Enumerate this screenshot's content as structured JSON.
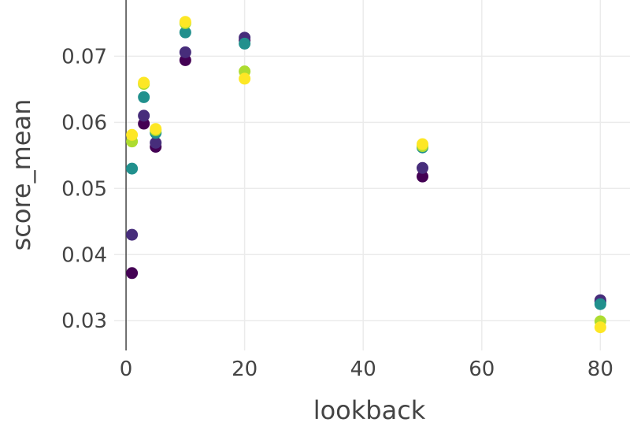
{
  "chart_data": {
    "type": "scatter",
    "title": "",
    "xlabel": "lookback",
    "ylabel": "score_mean",
    "xlim": [
      -2,
      85
    ],
    "ylim": [
      0.0255,
      0.0785
    ],
    "xticks": [
      0,
      20,
      40,
      60,
      80
    ],
    "xtick_labels": [
      "0",
      "20",
      "40",
      "60",
      "80"
    ],
    "yticks": [
      0.03,
      0.04,
      0.05,
      0.06,
      0.07
    ],
    "ytick_labels": [
      "0.03",
      "0.04",
      "0.05",
      "0.06",
      "0.07"
    ],
    "grid": true,
    "series": [
      {
        "color": "#440154",
        "points": [
          [
            1,
            0.0372
          ],
          [
            3,
            0.0598
          ],
          [
            5,
            0.0563
          ],
          [
            10,
            0.0694
          ],
          [
            20,
            0.0724
          ],
          [
            50,
            0.0518
          ],
          [
            80,
            0.0329
          ]
        ]
      },
      {
        "color": "#472d7b",
        "points": [
          [
            1,
            0.043
          ],
          [
            3,
            0.061
          ],
          [
            5,
            0.0569
          ],
          [
            10,
            0.0706
          ],
          [
            20,
            0.0728
          ],
          [
            50,
            0.0531
          ],
          [
            80,
            0.0331
          ]
        ]
      },
      {
        "color": "#21908d",
        "points": [
          [
            1,
            0.053
          ],
          [
            3,
            0.0638
          ],
          [
            5,
            0.0584
          ],
          [
            10,
            0.0736
          ],
          [
            20,
            0.0719
          ],
          [
            50,
            0.0562
          ],
          [
            80,
            0.0325
          ]
        ]
      },
      {
        "color": "#addc30",
        "points": [
          [
            1,
            0.0571
          ],
          [
            3,
            0.0658
          ],
          [
            5,
            0.0588
          ],
          [
            10,
            0.075
          ],
          [
            20,
            0.0677
          ],
          [
            50,
            0.0564
          ],
          [
            80,
            0.0299
          ]
        ]
      },
      {
        "color": "#fde725",
        "points": [
          [
            1,
            0.0581
          ],
          [
            3,
            0.066
          ],
          [
            5,
            0.059
          ],
          [
            10,
            0.0752
          ],
          [
            20,
            0.0666
          ],
          [
            50,
            0.0567
          ],
          [
            80,
            0.029
          ]
        ]
      }
    ]
  }
}
